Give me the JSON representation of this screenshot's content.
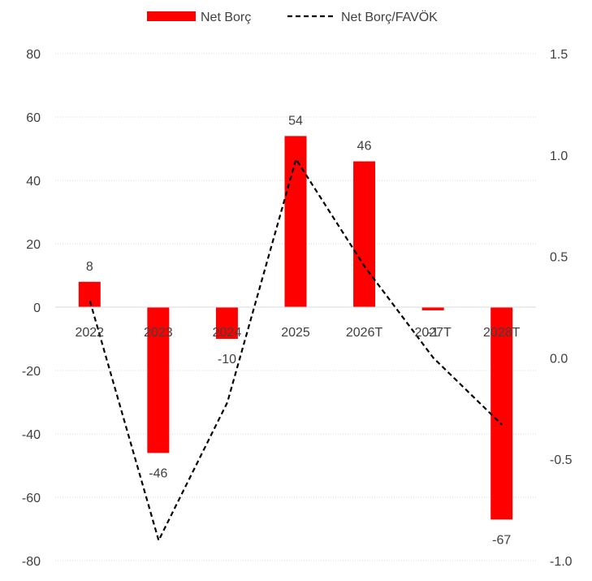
{
  "chart_data": {
    "type": "bar",
    "categories": [
      "2022",
      "2023",
      "2024",
      "2025",
      "2026T",
      "2027T",
      "2028T"
    ],
    "series": [
      {
        "name": "Net Borç",
        "type": "bar",
        "axis": "left",
        "color": "#ff0000",
        "values": [
          8,
          -46,
          -10,
          54,
          46,
          -1,
          -67
        ],
        "data_labels": [
          "8",
          "-46",
          "-10",
          "54",
          "46",
          "-1",
          "-67"
        ]
      },
      {
        "name": "Net Borç/FAVÖK",
        "type": "line",
        "axis": "right",
        "color": "#000000",
        "line_style": "dashed",
        "values": [
          0.28,
          -0.9,
          -0.22,
          0.98,
          0.45,
          0.0,
          -0.33
        ]
      }
    ],
    "y_left": {
      "ylim": [
        -80,
        80
      ],
      "ticks": [
        80,
        60,
        40,
        20,
        0,
        -20,
        -40,
        -60,
        -80
      ]
    },
    "y_right": {
      "ylim": [
        -1.0,
        1.5
      ],
      "ticks": [
        "1.5",
        "1.0",
        "0.5",
        "0.0",
        "-0.5",
        "-1.0"
      ]
    },
    "grid": true,
    "legend_position": "top"
  }
}
